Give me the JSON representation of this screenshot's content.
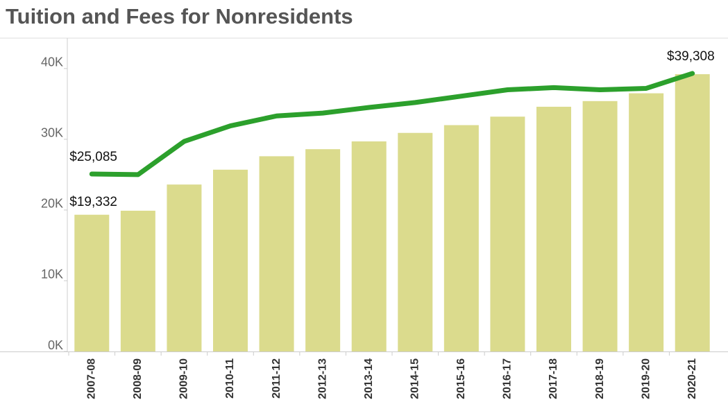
{
  "chart_data": {
    "type": "bar-line",
    "title": "Tuition and Fees for Nonresidents",
    "categories": [
      "2007-08",
      "2008-09",
      "2009-10",
      "2010-11",
      "2011-12",
      "2012-13",
      "2013-14",
      "2014-15",
      "2015-16",
      "2016-17",
      "2017-18",
      "2018-19",
      "2019-20",
      "2020-21"
    ],
    "series": [
      {
        "type": "bar",
        "color": "#dbdb8d",
        "values": [
          19332,
          19900,
          23600,
          25700,
          27600,
          28600,
          29700,
          30900,
          32000,
          33200,
          34600,
          35400,
          36500,
          39200
        ],
        "value_labels": [
          "$19,332",
          null,
          null,
          null,
          null,
          null,
          null,
          null,
          null,
          null,
          null,
          null,
          null,
          null
        ]
      },
      {
        "type": "line",
        "color": "#2ca02c",
        "values": [
          25085,
          25000,
          29700,
          31900,
          33300,
          33700,
          34500,
          35200,
          36100,
          37000,
          37300,
          37000,
          37200,
          39308
        ],
        "value_labels": [
          "$25,085",
          null,
          null,
          null,
          null,
          null,
          null,
          null,
          null,
          null,
          null,
          null,
          null,
          "$39,308"
        ]
      }
    ],
    "ylim": [
      0,
      44300
    ],
    "yticks": [
      {
        "value": 0,
        "label": "0K"
      },
      {
        "value": 10000,
        "label": "10K"
      },
      {
        "value": 20000,
        "label": "20K"
      },
      {
        "value": 30000,
        "label": "30K"
      },
      {
        "value": 40000,
        "label": "40K"
      }
    ]
  }
}
